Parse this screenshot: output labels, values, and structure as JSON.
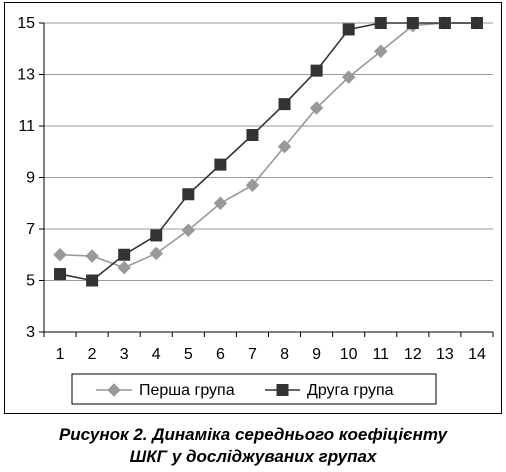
{
  "chart_data": {
    "type": "line",
    "title": "",
    "xlabel": "",
    "ylabel": "",
    "x": [
      1,
      2,
      3,
      4,
      5,
      6,
      7,
      8,
      9,
      10,
      11,
      12,
      13,
      14
    ],
    "xticks": [
      "1",
      "2",
      "3",
      "4",
      "5",
      "6",
      "7",
      "8",
      "9",
      "10",
      "11",
      "12",
      "13",
      "14"
    ],
    "ylim": [
      3,
      15
    ],
    "yticks": [
      3,
      5,
      7,
      9,
      11,
      13,
      15
    ],
    "grid": "horizontal",
    "legend": "bottom",
    "series": [
      {
        "name": "Перша група",
        "marker": "diamond",
        "color": "#999999",
        "values": [
          6.0,
          5.95,
          5.5,
          6.05,
          6.95,
          8.0,
          8.7,
          10.2,
          11.7,
          12.9,
          13.9,
          14.9,
          15.0,
          15.0
        ]
      },
      {
        "name": "Друга група",
        "marker": "square",
        "color": "#333333",
        "values": [
          5.25,
          5.0,
          6.0,
          6.75,
          8.35,
          9.5,
          10.65,
          11.85,
          13.15,
          14.75,
          15.0,
          15.0,
          15.0,
          15.0
        ]
      }
    ]
  },
  "caption": {
    "line1": "Рисунок 2.  Динаміка середнього коефіцієнту",
    "line2": "ШКГ у досліджуваних групах"
  }
}
